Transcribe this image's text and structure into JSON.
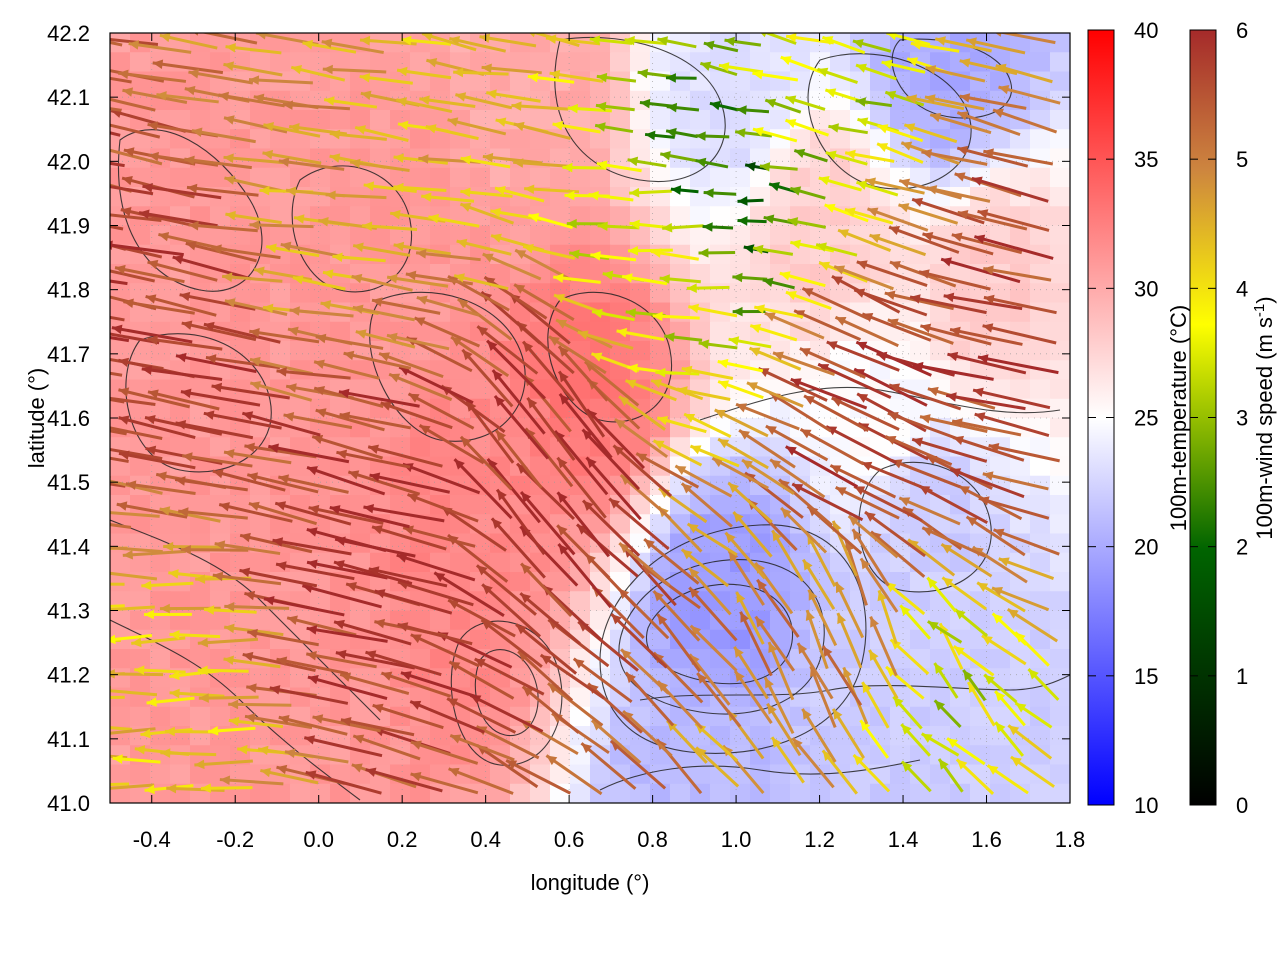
{
  "chart_data": {
    "type": "vector-field-heatmap",
    "xlabel": "longitude (°)",
    "ylabel": "latitude (°)",
    "xlim": [
      -0.5,
      1.8
    ],
    "ylim": [
      41.0,
      42.2
    ],
    "xticks": [
      "-0.4",
      "-0.2",
      "0.0",
      "0.2",
      "0.4",
      "0.6",
      "0.8",
      "1.0",
      "1.2",
      "1.4",
      "1.6",
      "1.8"
    ],
    "xtick_values": [
      -0.4,
      -0.2,
      0.0,
      0.2,
      0.4,
      0.6,
      0.8,
      1.0,
      1.2,
      1.4,
      1.6,
      1.8
    ],
    "yticks": [
      "41.0",
      "41.1",
      "41.2",
      "41.3",
      "41.4",
      "41.5",
      "41.6",
      "41.7",
      "41.8",
      "41.9",
      "42.0",
      "42.1",
      "42.2"
    ],
    "ytick_values": [
      41.0,
      41.1,
      41.2,
      41.3,
      41.4,
      41.5,
      41.6,
      41.7,
      41.8,
      41.9,
      42.0,
      42.1,
      42.2
    ],
    "grid": true,
    "temperature_colorbar": {
      "label": "100m-temperature (°C)",
      "range": [
        10,
        40
      ],
      "ticks": [
        "10",
        "15",
        "20",
        "25",
        "30",
        "35",
        "40"
      ],
      "tick_values": [
        10,
        15,
        20,
        25,
        30,
        35,
        40
      ],
      "colors": [
        "#0000ff",
        "#ffffff",
        "#ff0000"
      ]
    },
    "wind_colorbar": {
      "label_main": "100m-wind speed (m s",
      "label_sup": "-1",
      "label_end": ")",
      "range": [
        0,
        6
      ],
      "ticks": [
        "0",
        "1",
        "2",
        "3",
        "4",
        "5",
        "6"
      ],
      "tick_values": [
        0,
        1,
        2,
        3,
        4,
        5,
        6
      ],
      "colors": [
        "#000000",
        "#006400",
        "#ffff00",
        "#cd853f",
        "#a52a2a"
      ]
    },
    "temperature_regions": [
      {
        "lon": -0.3,
        "lat": 41.8,
        "temp": 31
      },
      {
        "lon": 0.2,
        "lat": 41.9,
        "temp": 31
      },
      {
        "lon": 0.0,
        "lat": 41.2,
        "temp": 31
      },
      {
        "lon": 0.4,
        "lat": 41.5,
        "temp": 32
      },
      {
        "lon": 0.65,
        "lat": 41.65,
        "temp": 33
      },
      {
        "lon": 0.3,
        "lat": 41.3,
        "temp": 32
      },
      {
        "lon": 0.5,
        "lat": 42.1,
        "temp": 30
      },
      {
        "lon": 1.0,
        "lat": 42.1,
        "temp": 23
      },
      {
        "lon": 1.5,
        "lat": 42.15,
        "temp": 20
      },
      {
        "lon": 1.2,
        "lat": 41.9,
        "temp": 28
      },
      {
        "lon": 1.6,
        "lat": 41.8,
        "temp": 28
      },
      {
        "lon": 1.35,
        "lat": 41.6,
        "temp": 25
      },
      {
        "lon": 0.98,
        "lat": 41.32,
        "temp": 19
      },
      {
        "lon": 1.45,
        "lat": 41.45,
        "temp": 22
      },
      {
        "lon": 1.3,
        "lat": 41.15,
        "temp": 22
      },
      {
        "lon": 1.6,
        "lat": 41.05,
        "temp": 22
      },
      {
        "lon": 0.9,
        "lat": 41.05,
        "temp": 21
      }
    ],
    "wind_regions": [
      {
        "lon": 0.2,
        "lat": 41.4,
        "u": -5.0,
        "v": 1.2,
        "speed": 5.8
      },
      {
        "lon": -0.3,
        "lat": 41.7,
        "u": -5.0,
        "v": 1.0,
        "speed": 5.6
      },
      {
        "lon": 0.6,
        "lat": 41.5,
        "u": -2.5,
        "v": 3.0,
        "speed": 5.8
      },
      {
        "lon": 1.4,
        "lat": 41.55,
        "u": -4.5,
        "v": 2.2,
        "speed": 5.7
      },
      {
        "lon": 1.7,
        "lat": 41.7,
        "u": -5.0,
        "v": 1.2,
        "speed": 5.5
      },
      {
        "lon": 0.1,
        "lat": 41.9,
        "u": -4.0,
        "v": 0.5,
        "speed": 4.2
      },
      {
        "lon": 0.9,
        "lat": 41.85,
        "u": -3.5,
        "v": 0.2,
        "speed": 3.0
      },
      {
        "lon": 1.0,
        "lat": 41.95,
        "u": -2.5,
        "v": 0.2,
        "speed": 1.4
      },
      {
        "lon": 1.2,
        "lat": 42.1,
        "u": -3.0,
        "v": 0.8,
        "speed": 2.6
      },
      {
        "lon": 0.4,
        "lat": 42.1,
        "u": -3.0,
        "v": 0.5,
        "speed": 3.8
      },
      {
        "lon": 1.5,
        "lat": 41.15,
        "u": -1.0,
        "v": 1.0,
        "speed": 2.8
      },
      {
        "lon": 1.3,
        "lat": 41.25,
        "u": -1.2,
        "v": 2.5,
        "speed": 4.6
      },
      {
        "lon": -0.3,
        "lat": 41.2,
        "u": -3.5,
        "v": 0.0,
        "speed": 3.6
      }
    ]
  }
}
